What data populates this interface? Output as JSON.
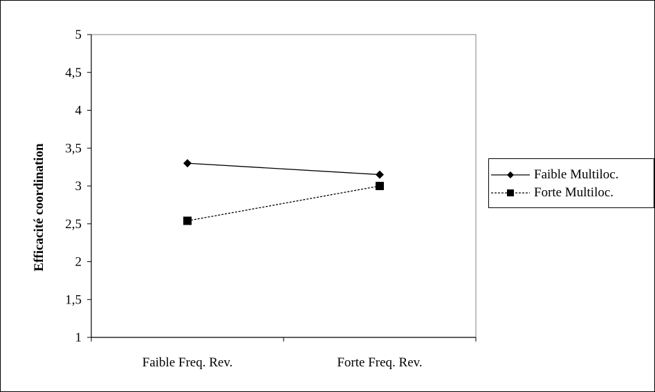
{
  "chart_data": {
    "type": "line",
    "categories": [
      "Faible Freq. Rev.",
      "Forte Freq. Rev."
    ],
    "series": [
      {
        "name": "Faible Multiloc.",
        "values": [
          3.3,
          3.15
        ],
        "marker": "diamond",
        "line": "solid",
        "color": "#000000"
      },
      {
        "name": "Forte Multiloc.",
        "values": [
          2.54,
          3.0
        ],
        "marker": "square",
        "line": "dashed",
        "color": "#000000"
      }
    ],
    "ylabel": "Efficacité  coordination",
    "xlabel": "",
    "ylim": [
      1,
      5
    ],
    "yticks": [
      "1",
      "1,5",
      "2",
      "2,5",
      "3",
      "3,5",
      "4",
      "4,5",
      "5"
    ],
    "grid": false,
    "legend_position": "right"
  }
}
